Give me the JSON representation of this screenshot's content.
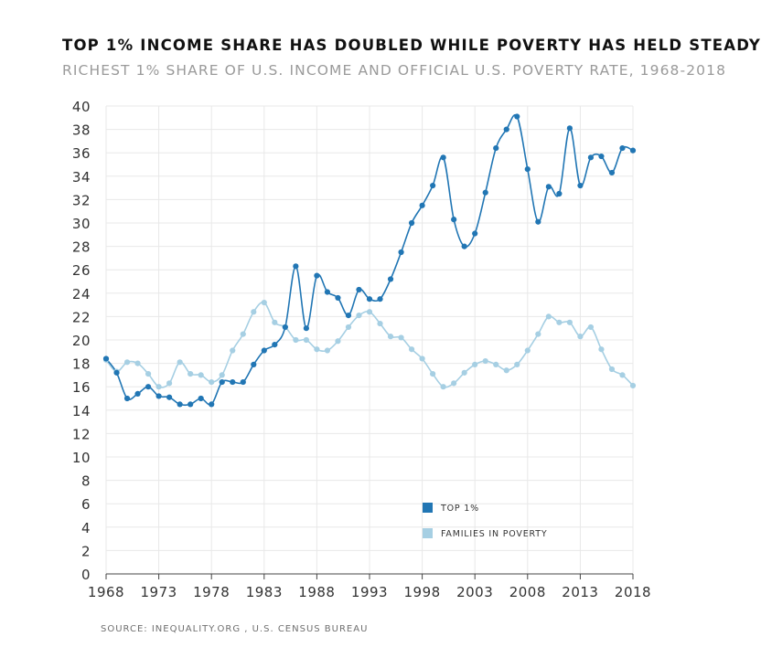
{
  "chart_data": {
    "type": "line",
    "title": "TOP 1% INCOME SHARE HAS DOUBLED WHILE POVERTY HAS HELD STEADY",
    "subtitle": "RICHEST 1% SHARE OF U.S. INCOME AND OFFICIAL U.S. POVERTY RATE, 1968-2018",
    "source": "SOURCE:  INEQUALITY.ORG , U.S. CENSUS BUREAU",
    "xlabel": "",
    "ylabel": "",
    "xlim": [
      1968,
      2018
    ],
    "ylim": [
      0,
      40
    ],
    "x_ticks": [
      "1968",
      "1973",
      "1978",
      "1983",
      "1988",
      "1993",
      "1998",
      "2003",
      "2008",
      "2013",
      "2018"
    ],
    "y_ticks": [
      "0",
      "2",
      "4",
      "6",
      "8",
      "10",
      "12",
      "14",
      "16",
      "18",
      "20",
      "22",
      "24",
      "26",
      "28",
      "30",
      "32",
      "34",
      "36",
      "38",
      "40"
    ],
    "grid": true,
    "legend_position": "bottom-center",
    "x": [
      1968,
      1969,
      1970,
      1971,
      1972,
      1973,
      1974,
      1975,
      1976,
      1977,
      1978,
      1979,
      1980,
      1981,
      1982,
      1983,
      1984,
      1985,
      1986,
      1987,
      1988,
      1989,
      1990,
      1991,
      1992,
      1993,
      1994,
      1995,
      1996,
      1997,
      1998,
      1999,
      2000,
      2001,
      2002,
      2003,
      2004,
      2005,
      2006,
      2007,
      2008,
      2009,
      2010,
      2011,
      2012,
      2013,
      2014,
      2015,
      2016,
      2017,
      2018
    ],
    "series": [
      {
        "name": "TOP 1%",
        "color": "#2176b4",
        "values": [
          18.4,
          17.2,
          15.0,
          15.4,
          16.0,
          15.2,
          15.1,
          14.5,
          14.5,
          15.0,
          14.5,
          16.4,
          16.4,
          16.4,
          17.9,
          19.1,
          19.6,
          21.1,
          26.3,
          21.0,
          25.5,
          24.1,
          23.6,
          22.1,
          24.3,
          23.5,
          23.5,
          25.2,
          27.5,
          30.0,
          31.5,
          33.2,
          35.6,
          30.3,
          28.0,
          29.1,
          32.6,
          36.4,
          38.0,
          39.1,
          34.6,
          30.1,
          33.1,
          32.5,
          38.1,
          33.2,
          35.6,
          35.7,
          34.3,
          36.4,
          36.2
        ]
      },
      {
        "name": "FAMILIES IN POVERTY",
        "color": "#a6cfe3",
        "values": [
          18.3,
          17.3,
          18.1,
          18.0,
          17.1,
          16.0,
          16.3,
          18.1,
          17.1,
          17.0,
          16.4,
          17.0,
          19.1,
          20.5,
          22.4,
          23.2,
          21.5,
          21.1,
          20.0,
          20.0,
          19.2,
          19.1,
          19.9,
          21.1,
          22.1,
          22.4,
          21.4,
          20.3,
          20.2,
          19.2,
          18.4,
          17.1,
          16.0,
          16.3,
          17.2,
          17.9,
          18.2,
          17.9,
          17.4,
          17.9,
          19.1,
          20.5,
          22.0,
          21.5,
          21.5,
          20.3,
          21.1,
          19.2,
          17.5,
          17.0,
          16.1
        ]
      }
    ]
  }
}
